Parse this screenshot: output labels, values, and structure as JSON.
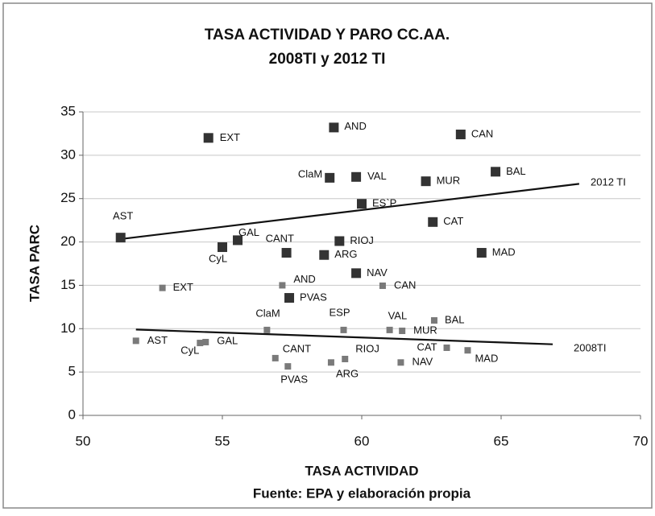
{
  "chart_data": {
    "type": "scatter",
    "title": "TASA ACTIVIDAD Y PARO CC.AA.",
    "subtitle": "2008TI y 2012 TI",
    "x_label": "TASA ACTIVIDAD",
    "y_label": "TASA PARC",
    "source": "Fuente: EPA y elaboración propia",
    "xlim": [
      50,
      70
    ],
    "xticks": [
      50,
      55,
      60,
      65,
      70
    ],
    "ylim": [
      0,
      35
    ],
    "yticks": [
      0,
      5,
      10,
      15,
      20,
      25,
      30,
      35
    ],
    "grid": true,
    "series": [
      {
        "name": "2012 TI",
        "color": "#333333",
        "marker": "square",
        "point_labels": [
          "EXT",
          "AND",
          "CAN",
          "ClaM",
          "VAL",
          "MUR",
          "BAL",
          "ES`P",
          "AST",
          "CAT",
          "GAL",
          "CyL",
          "CANT",
          "RIOJ",
          "ARG",
          "MAD",
          "NAV",
          "PVAS"
        ],
        "x": [
          54.5,
          59.0,
          63.55,
          58.85,
          59.8,
          62.3,
          64.8,
          60.0,
          51.35,
          62.55,
          55.55,
          55.0,
          57.3,
          59.2,
          58.65,
          64.3,
          59.8,
          57.4
        ],
        "values": [
          32.0,
          33.2,
          32.4,
          27.4,
          27.5,
          27.0,
          28.1,
          24.4,
          20.5,
          22.3,
          20.2,
          19.4,
          18.75,
          20.1,
          18.5,
          18.75,
          16.4,
          13.55
        ],
        "trendline": {
          "x": [
            51.27,
            67.8
          ],
          "values": [
            20.3,
            26.7
          ]
        }
      },
      {
        "name": "2008TI",
        "color": "#7a7a7a",
        "marker": "small",
        "point_labels": [
          "EXT",
          "AND",
          "CAN",
          "ClaM",
          "ESP",
          "VAL",
          "MUR",
          "BAL",
          "AST",
          "CyL",
          "GAL",
          "CAT",
          "MAD",
          "CANT",
          "RIOJ",
          "ARG",
          "NAV",
          "PVAS"
        ],
        "x": [
          52.85,
          57.15,
          60.75,
          56.6,
          59.35,
          61.0,
          61.45,
          62.6,
          51.9,
          54.2,
          54.4,
          63.05,
          63.8,
          56.9,
          59.4,
          58.9,
          61.4,
          57.35
        ],
        "values": [
          14.7,
          15.0,
          14.95,
          9.85,
          9.85,
          9.85,
          9.75,
          10.95,
          8.6,
          8.35,
          8.45,
          7.8,
          7.5,
          6.6,
          6.5,
          6.1,
          6.1,
          5.65
        ],
        "trendline": {
          "x": [
            51.9,
            66.85
          ],
          "values": [
            9.9,
            8.2
          ]
        }
      }
    ]
  }
}
